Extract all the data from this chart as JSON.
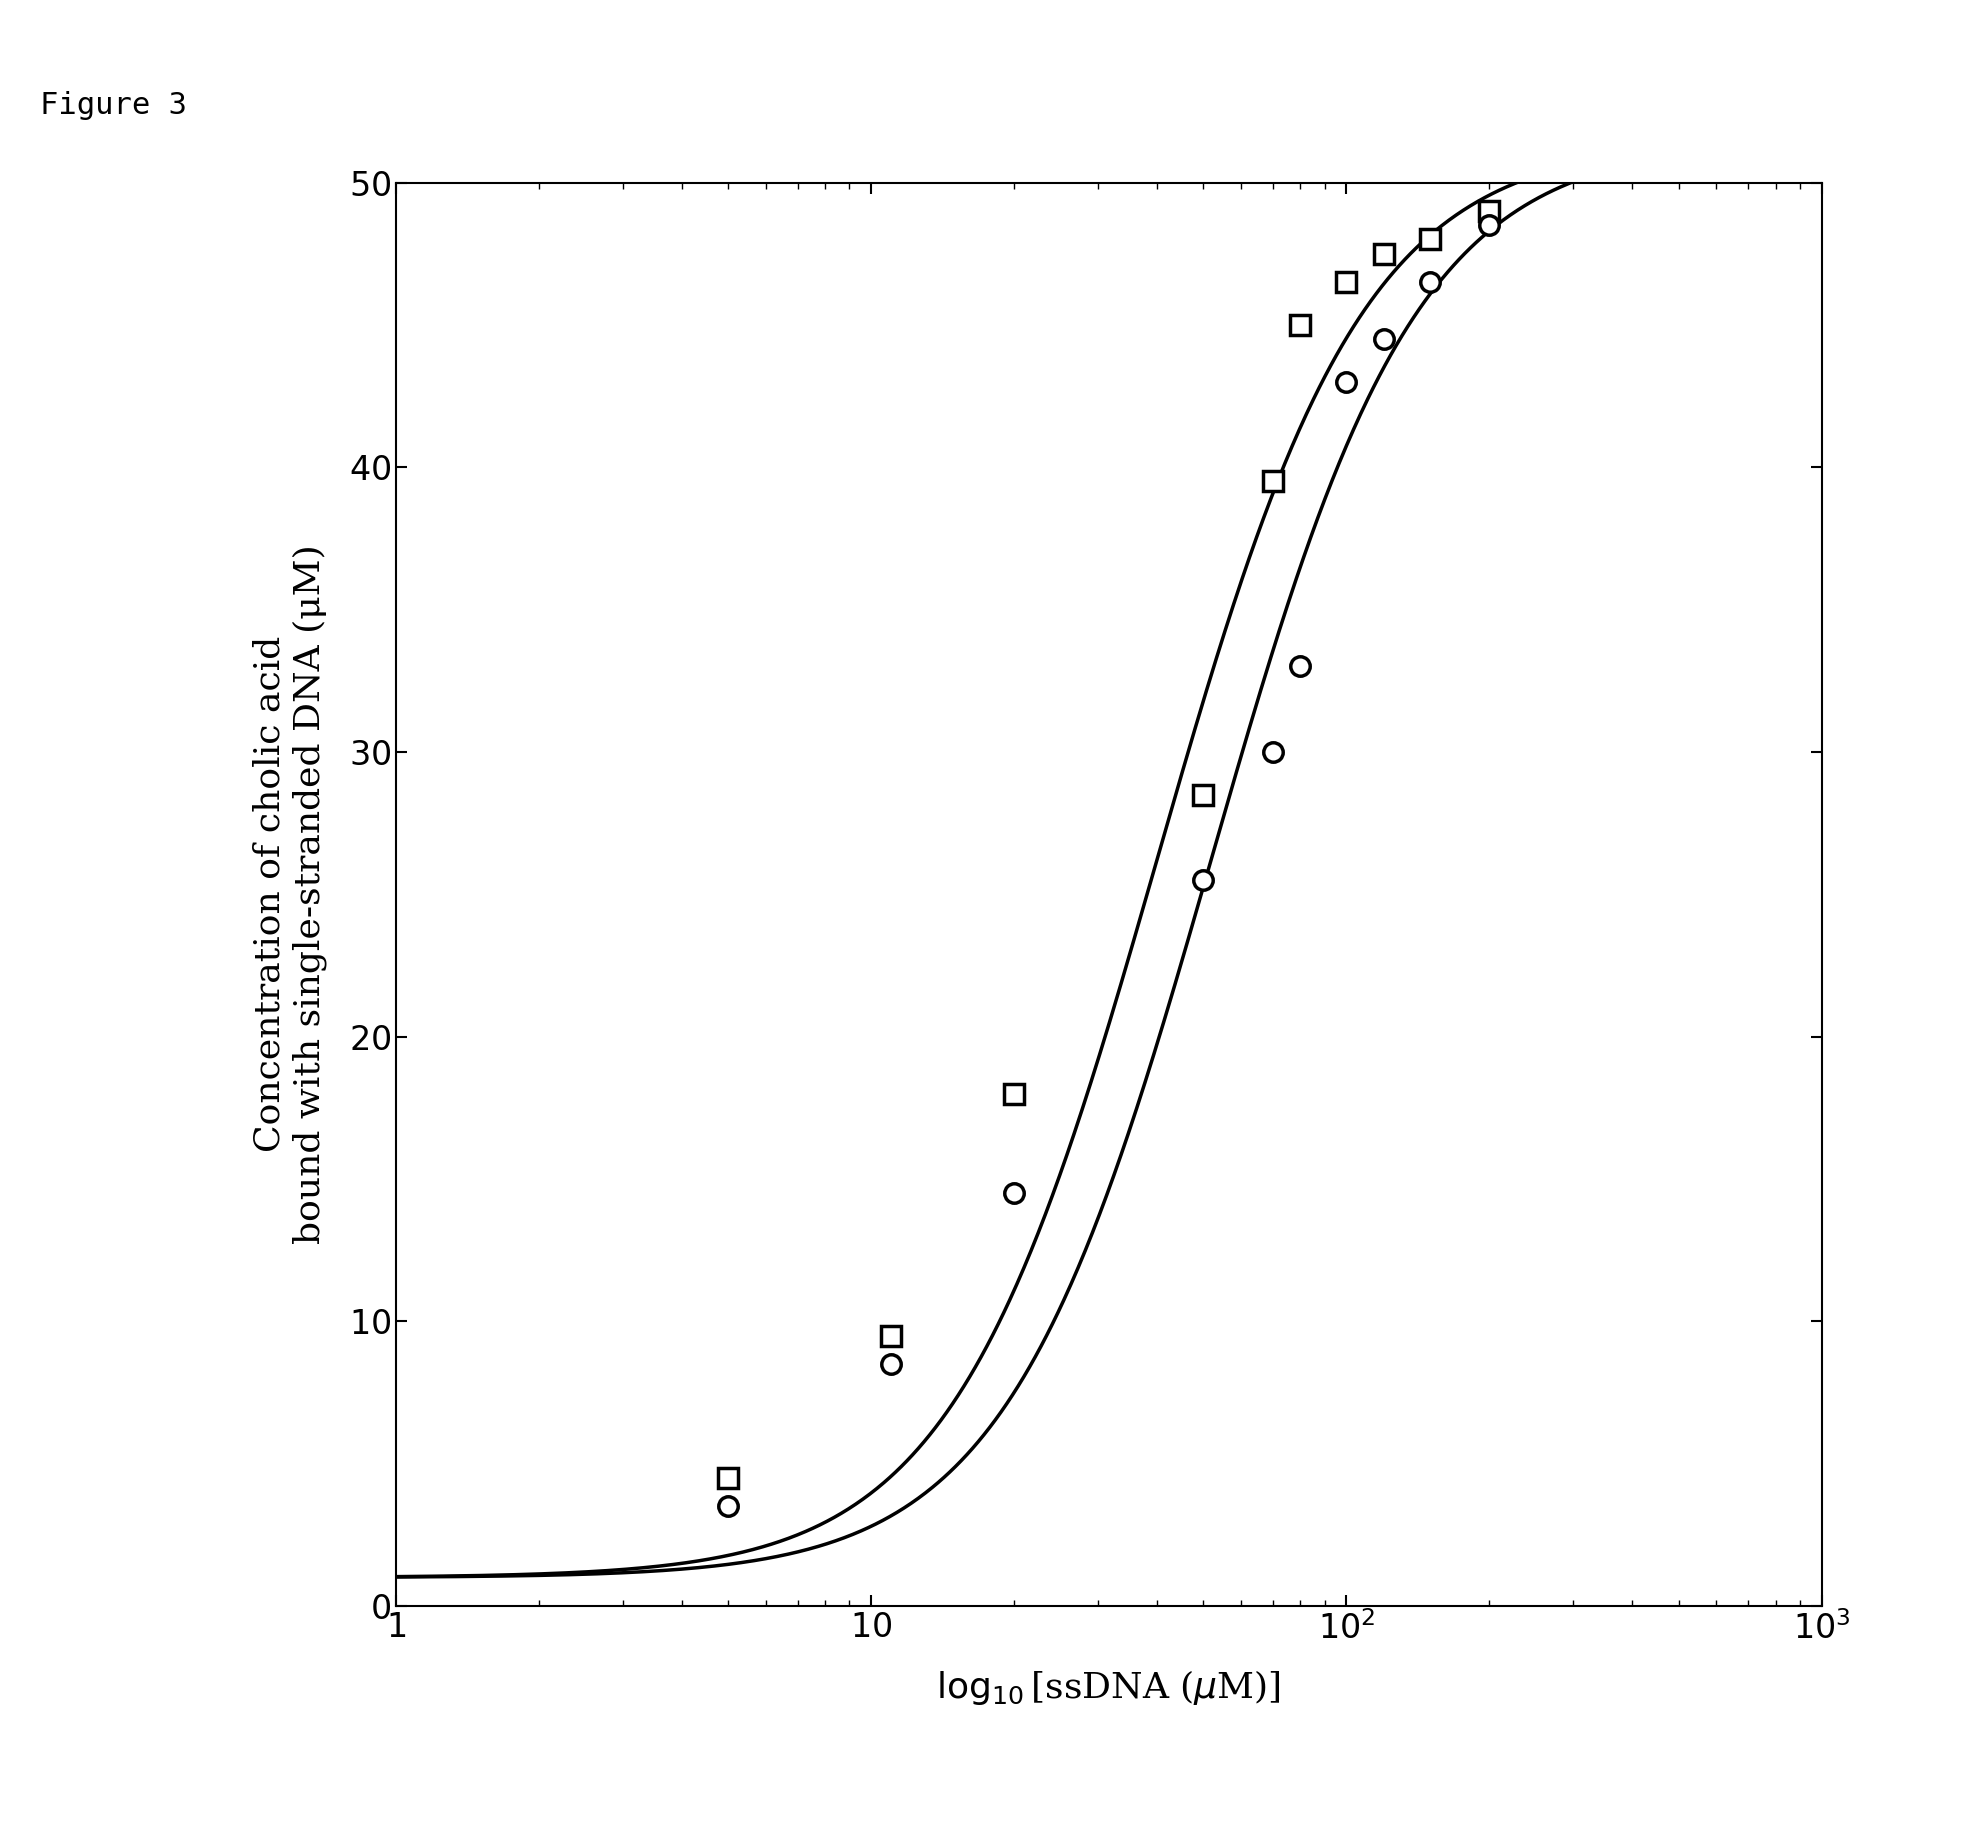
{
  "title": "Figure 3",
  "xlabel_parts": [
    "log",
    "10",
    "[ssDNA (",
    "μM",
    ")]"
  ],
  "ylabel_line1": "Concentration of cholic acid",
  "ylabel_line2": "bound with single-stranded DNA (μM)",
  "xlim": [
    1,
    1000
  ],
  "ylim": [
    0,
    50
  ],
  "yticks": [
    0,
    10,
    20,
    30,
    40,
    50
  ],
  "background_color": "#ffffff",
  "line_color": "#000000",
  "square_data_x": [
    5.0,
    11.0,
    20.0,
    50.0,
    70.0,
    80.0,
    100.0,
    120.0,
    150.0,
    200.0
  ],
  "square_data_y": [
    4.5,
    9.5,
    18.0,
    28.5,
    39.5,
    45.0,
    46.5,
    47.5,
    48.0,
    49.0
  ],
  "circle_data_x": [
    5.0,
    11.0,
    20.0,
    50.0,
    70.0,
    80.0,
    100.0,
    120.0,
    150.0,
    200.0
  ],
  "circle_data_y": [
    3.5,
    8.5,
    14.5,
    25.5,
    30.0,
    33.0,
    43.0,
    44.5,
    46.5,
    48.5
  ],
  "curve1_Bmax": 50.5,
  "curve1_K": 40.0,
  "curve1_n": 2.0,
  "curve2_Bmax": 50.5,
  "curve2_K": 52.0,
  "curve2_n": 2.0,
  "marker_size": 14,
  "marker_edge_width": 2.5,
  "line_width": 2.5,
  "title_fontsize": 22,
  "label_fontsize": 26,
  "tick_fontsize": 24,
  "figwidth": 19.8,
  "figheight": 18.25,
  "dpi": 100
}
